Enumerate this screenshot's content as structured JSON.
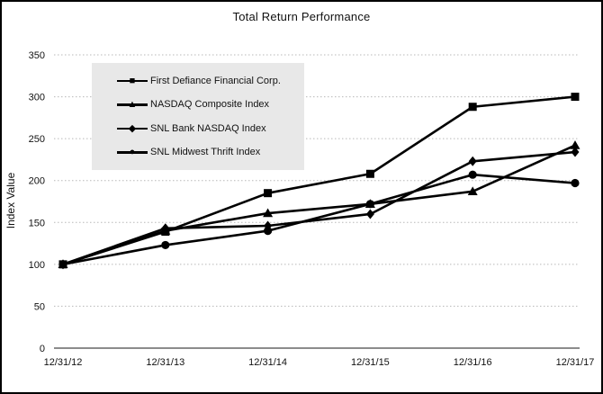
{
  "window": {
    "title": "Total Return Performance"
  },
  "chart": {
    "title": "Total Return Performance",
    "ylabel": "Index Value"
  },
  "icons": {
    "square_marker": "■",
    "triangle_marker": "▲",
    "diamond_marker": "◆",
    "circle_marker": "●"
  },
  "chart_data": {
    "type": "line",
    "title": "Total Return Performance",
    "xlabel": "",
    "ylabel": "Index Value",
    "categories": [
      "12/31/12",
      "12/31/13",
      "12/31/14",
      "12/31/15",
      "12/31/16",
      "12/31/17"
    ],
    "series": [
      {
        "name": "First Defiance Financial Corp.",
        "marker": "square",
        "values": [
          100,
          139,
          185,
          208,
          288,
          300
        ]
      },
      {
        "name": "NASDAQ Composite Index",
        "marker": "triangle",
        "values": [
          100,
          140,
          161,
          172,
          187,
          242
        ]
      },
      {
        "name": "SNL Bank NASDAQ Index",
        "marker": "diamond",
        "values": [
          100,
          143,
          146,
          160,
          223,
          234
        ]
      },
      {
        "name": "SNL Midwest Thrift Index",
        "marker": "circle",
        "values": [
          100,
          123,
          140,
          172,
          207,
          197
        ]
      }
    ],
    "ylim": [
      0,
      350
    ],
    "ytick_step": 50,
    "grid": "horizontal-dotted",
    "legend_position": "upper-left-inside",
    "colors": {
      "series_line": "#000000",
      "grid_line": "#b8b8b8",
      "axis_line": "#8c8c8c",
      "legend_background": "#e8e8e8",
      "text": "#111111",
      "background": "#ffffff",
      "border": "#000000"
    }
  }
}
